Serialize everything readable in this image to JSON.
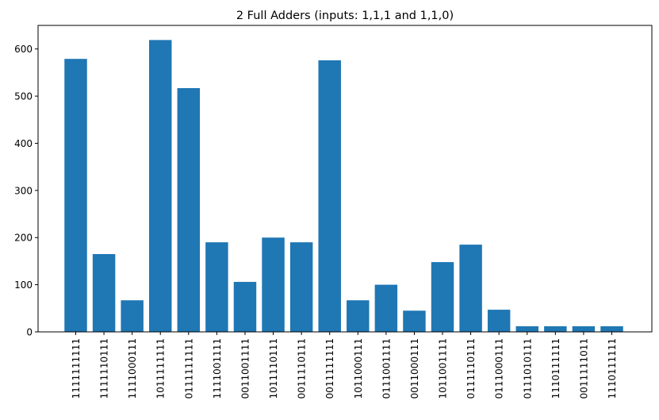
{
  "chart_data": {
    "type": "bar",
    "title": "2 Full Adders (inputs: 1,1,1 and 1,1,0)",
    "xlabel": "",
    "ylabel": "",
    "ylim": [
      0,
      650
    ],
    "yticks": [
      0,
      100,
      200,
      300,
      400,
      500,
      600
    ],
    "bar_color": "#1f77b4",
    "categories": [
      "1111111111",
      "1111110111",
      "1111000111",
      "1011111111",
      "0111111111",
      "1111001111",
      "0011001111",
      "1011110111",
      "0011110111",
      "0011111111",
      "1011000111",
      "0111001111",
      "0011000111",
      "1011001111",
      "0111110111",
      "0111000111",
      "0111010111",
      "1110111111",
      "0011111011",
      "1110111111"
    ],
    "values": [
      579,
      165,
      67,
      619,
      517,
      190,
      106,
      200,
      190,
      576,
      67,
      100,
      45,
      148,
      185,
      47,
      12,
      12,
      12,
      12
    ]
  }
}
